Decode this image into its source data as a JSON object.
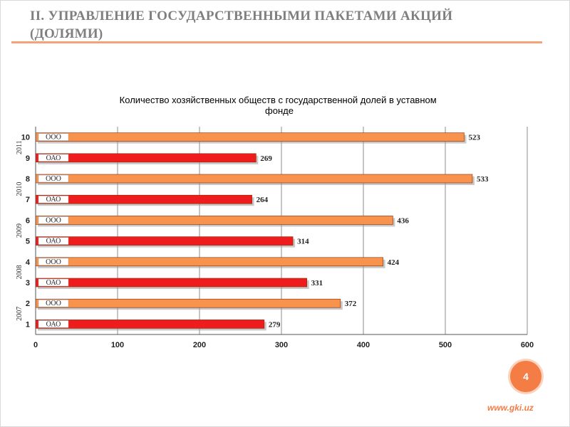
{
  "slide": {
    "title_line1": "II. УПРАВЛЕНИЕ ГОСУДАРСТВЕННЫМИ ПАКЕТАМИ АКЦИЙ",
    "title_line2": "(ДОЛЯМИ)",
    "page_number": "4",
    "site_url": "www.gki.uz"
  },
  "colors": {
    "ooo": "#f7934c",
    "oao": "#ee1c1c",
    "accent": "#f47c45"
  },
  "chart_data": {
    "type": "bar",
    "orientation": "horizontal",
    "title": "Количество хозяйственных обществ с государственной долей в уставном фонде",
    "ylabel": "",
    "xlabel": "",
    "xlim": [
      0,
      600
    ],
    "x_ticks": [
      0,
      100,
      200,
      300,
      400,
      500,
      600
    ],
    "y_ticks": [
      "10",
      "9",
      "8",
      "7",
      "6",
      "5",
      "4",
      "3",
      "2",
      "1"
    ],
    "grid": true,
    "legend": "none",
    "groups": [
      {
        "year": "2011",
        "bars": [
          {
            "label": "ООО",
            "value": 523,
            "color": "ooo"
          },
          {
            "label": "ОАО",
            "value": 269,
            "color": "oao"
          }
        ]
      },
      {
        "year": "2010",
        "bars": [
          {
            "label": "ООО",
            "value": 533,
            "color": "ooo"
          },
          {
            "label": "ОАО",
            "value": 264,
            "color": "oao"
          }
        ]
      },
      {
        "year": "2009",
        "bars": [
          {
            "label": "ООО",
            "value": 436,
            "color": "ooo"
          },
          {
            "label": "ОАО",
            "value": 314,
            "color": "oao"
          }
        ]
      },
      {
        "year": "2008",
        "bars": [
          {
            "label": "ООО",
            "value": 424,
            "color": "ooo"
          },
          {
            "label": "ОАО",
            "value": 331,
            "color": "oao"
          }
        ]
      },
      {
        "year": "2007",
        "bars": [
          {
            "label": "ООО",
            "value": 372,
            "color": "ooo"
          },
          {
            "label": "ОАО",
            "value": 279,
            "color": "oao"
          }
        ]
      }
    ]
  }
}
